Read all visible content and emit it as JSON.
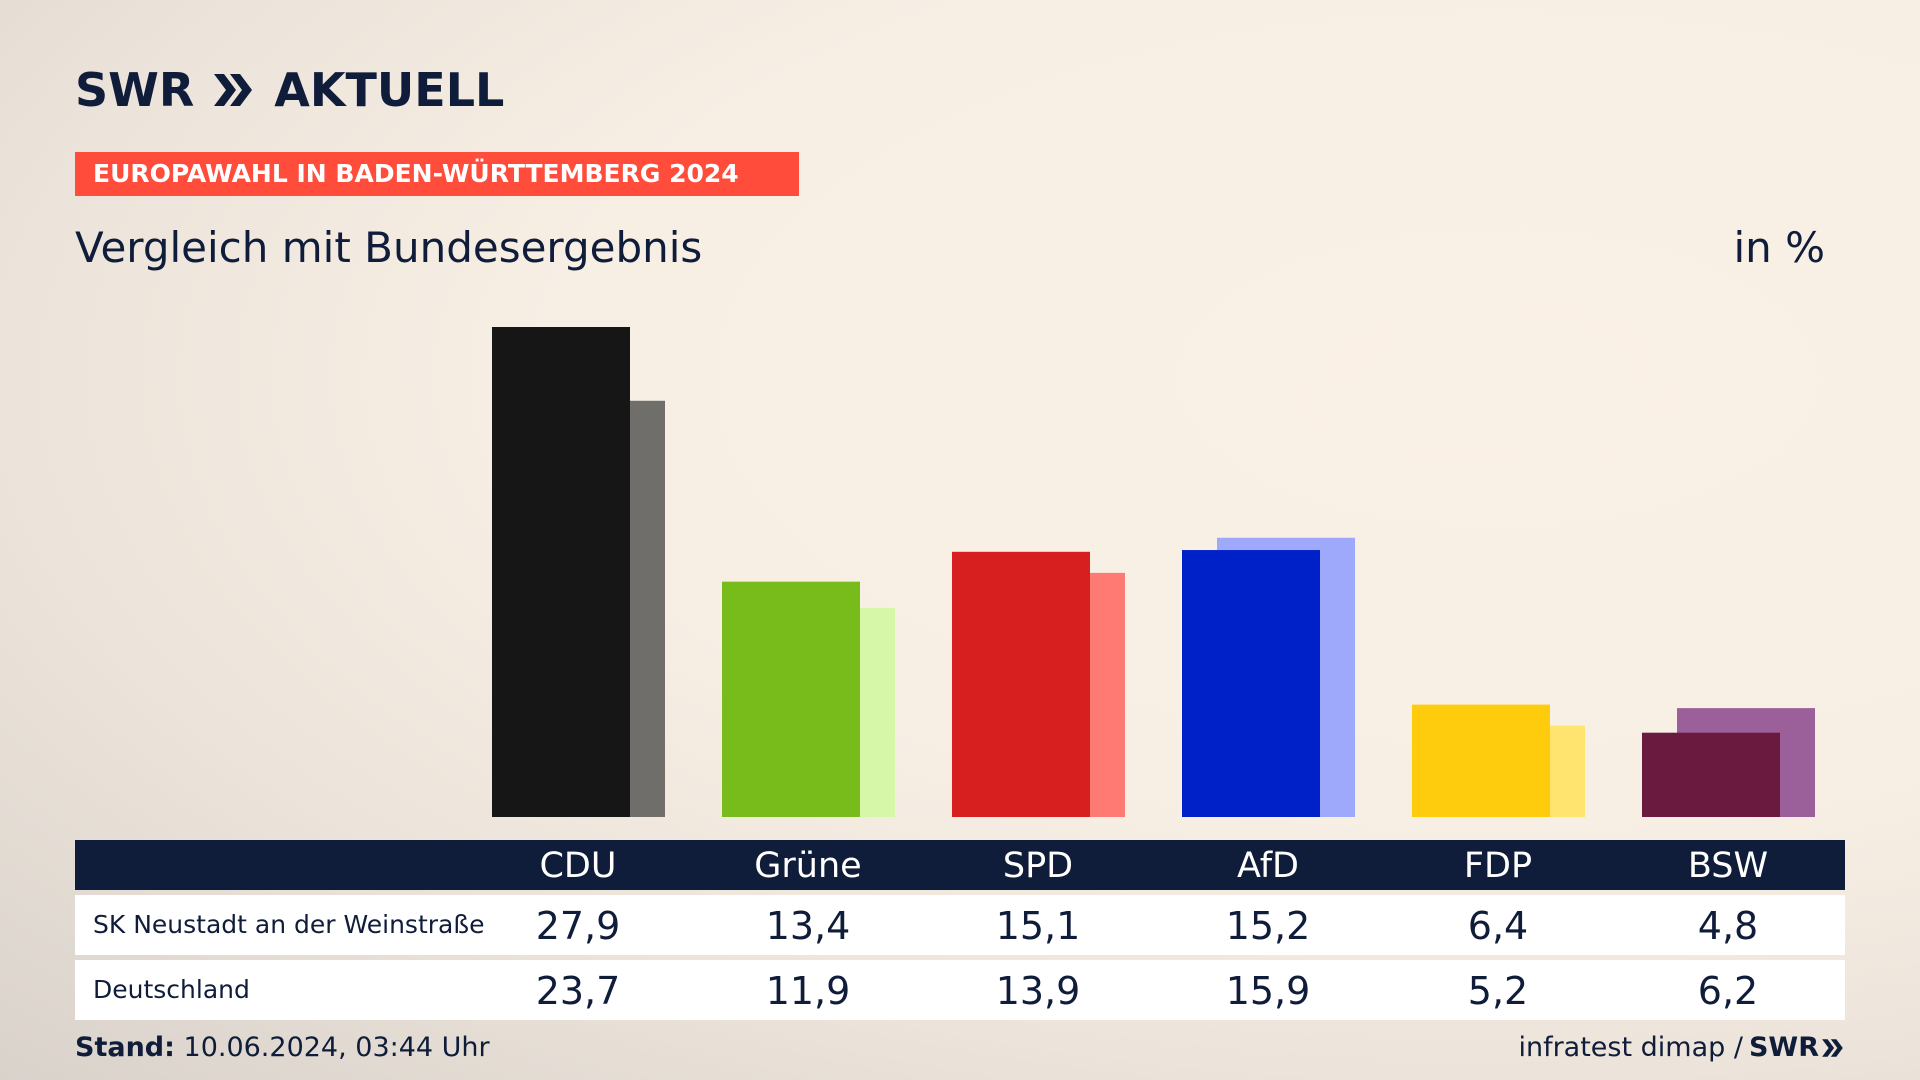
{
  "brand": {
    "swr": "SWR",
    "aktuell": "AKTUELL"
  },
  "headline": "EUROPAWAHL IN BADEN-WÜRTTEMBERG 2024",
  "subtitle": "Vergleich mit Bundesergebnis",
  "unit": "in %",
  "table": {
    "rows": [
      {
        "label": "SK Neustadt an der Weinstraße",
        "values": [
          "27,9",
          "13,4",
          "15,1",
          "15,2",
          "6,4",
          "4,8"
        ]
      },
      {
        "label": "Deutschland",
        "values": [
          "23,7",
          "11,9",
          "13,9",
          "15,9",
          "5,2",
          "6,2"
        ]
      }
    ]
  },
  "footer": {
    "stand_label": "Stand:",
    "stand_value": "10.06.2024, 03:44 Uhr",
    "source": "infratest dimap /",
    "logo": "SWR"
  },
  "chart_data": {
    "type": "bar",
    "categories": [
      "CDU",
      "Grüne",
      "SPD",
      "AfD",
      "FDP",
      "BSW"
    ],
    "series": [
      {
        "name": "SK Neustadt an der Weinstraße",
        "values": [
          27.9,
          13.4,
          15.1,
          15.2,
          6.4,
          4.8
        ],
        "colors": [
          "#161616",
          "#78bc1b",
          "#d71f1f",
          "#0021c8",
          "#ffcc0d",
          "#6a1a3f"
        ]
      },
      {
        "name": "Deutschland",
        "values": [
          23.7,
          11.9,
          13.9,
          15.9,
          5.2,
          6.2
        ],
        "colors": [
          "#706e6a",
          "#d6f6a8",
          "#ff7a73",
          "#9ea9fb",
          "#ffe470",
          "#9b5f99"
        ]
      }
    ],
    "title": "Vergleich mit Bundesergebnis",
    "ylabel": "in %",
    "ylim": [
      0,
      27.9
    ],
    "grid": false,
    "legend": "none"
  }
}
